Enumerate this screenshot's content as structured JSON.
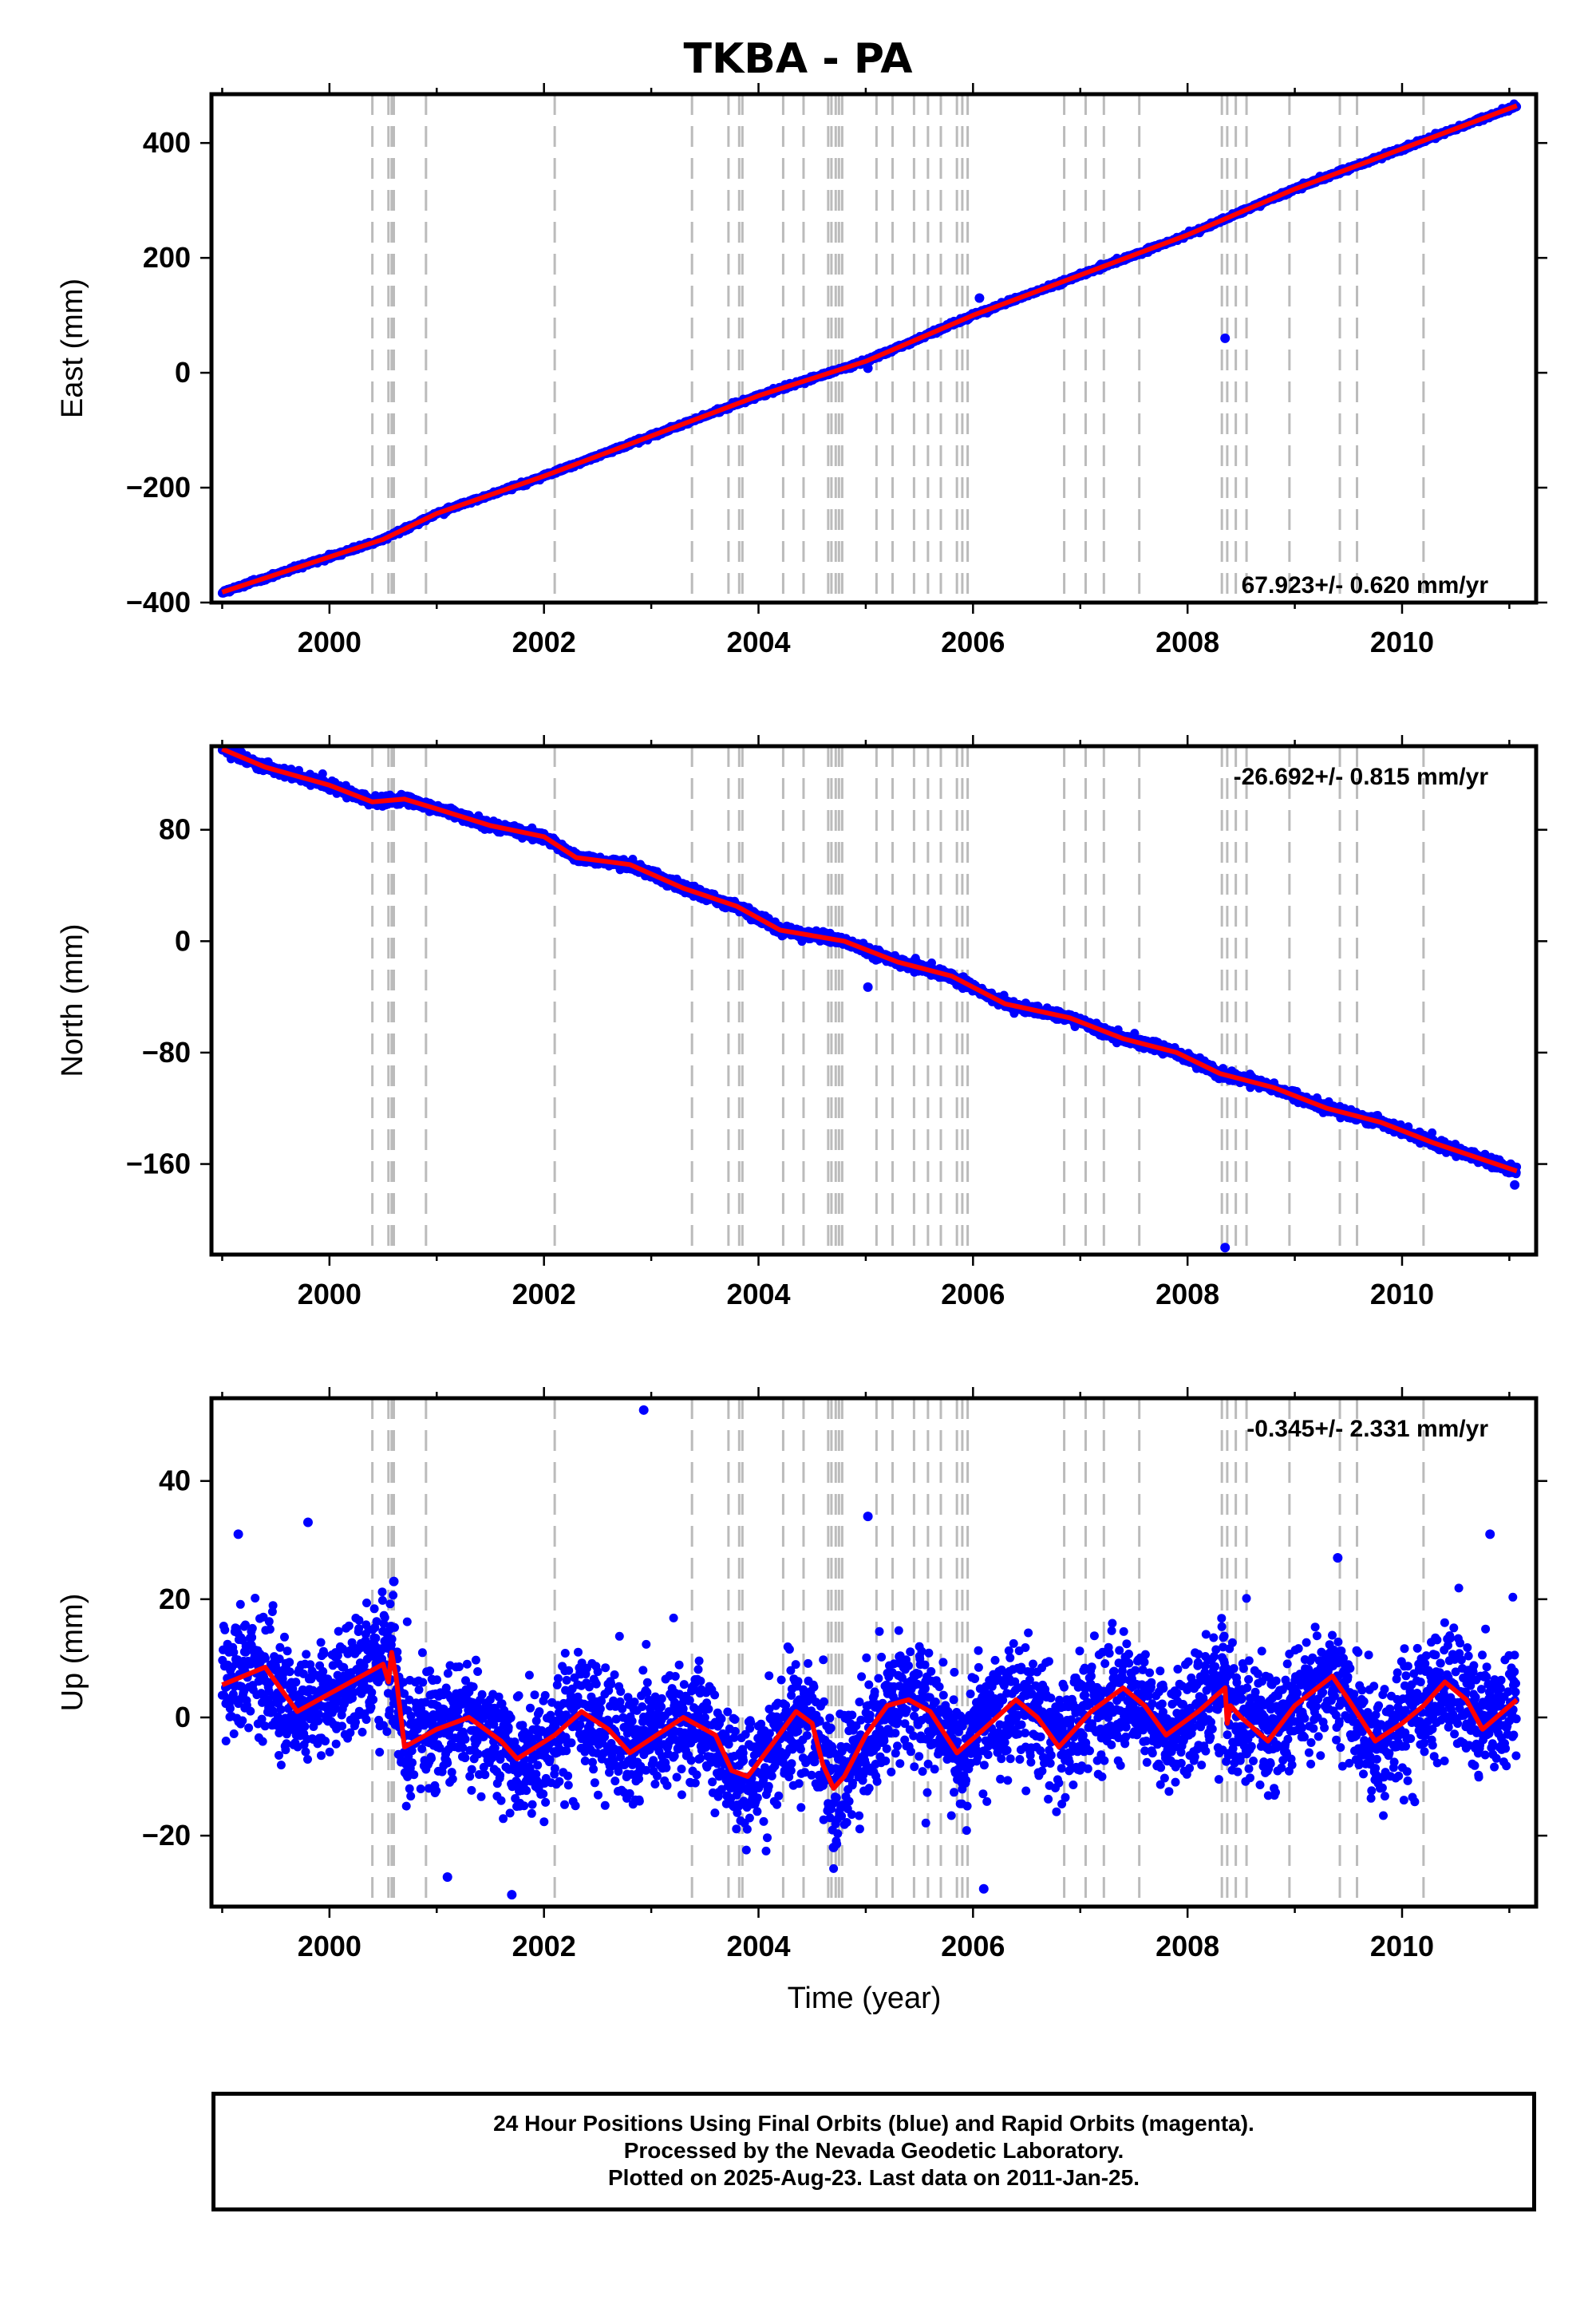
{
  "title": "TKBA - PA",
  "footer": {
    "line1": "24 Hour Positions Using Final Orbits (blue) and Rapid Orbits (magenta).",
    "line2": "Processed by the Nevada Geodetic Laboratory.",
    "line3": "Plotted on 2025-Aug-23. Last data on 2011-Jan-25."
  },
  "colors": {
    "data": "#0000ff",
    "model": "#ff0000",
    "events": "#bbbbbb"
  },
  "chart_data": [
    {
      "type": "scatter",
      "component": "east",
      "ylabel": "East (mm)",
      "xlabel": "",
      "xlim": [
        1998.9,
        2011.25
      ],
      "ylim": [
        -400,
        485
      ],
      "xticks": [
        2000,
        2002,
        2004,
        2006,
        2008,
        2010
      ],
      "yticks": [
        -400,
        -200,
        0,
        200,
        400
      ],
      "rate_label": "67.923+/- 0.620 mm/yr",
      "rate_position": "bottom-right",
      "series": [
        {
          "trend": {
            "start": [
              1999.0,
              -382
            ],
            "end": [
              2011.07,
              465
            ]
          },
          "outliers": [
            [
              2006.06,
              130
            ],
            [
              2005.02,
              8
            ],
            [
              2008.35,
              60
            ]
          ],
          "model_line": [
            [
              1999.0,
              -382
            ],
            [
              2000.5,
              -290
            ],
            [
              2001.0,
              -245
            ],
            [
              2002.0,
              -180
            ],
            [
              2003.0,
              -110
            ],
            [
              2004.0,
              -40
            ],
            [
              2005.0,
              20
            ],
            [
              2006.0,
              100
            ],
            [
              2007.0,
              170
            ],
            [
              2008.0,
              240
            ],
            [
              2009.0,
              320
            ],
            [
              2010.0,
              390
            ],
            [
              2011.07,
              465
            ]
          ]
        }
      ]
    },
    {
      "type": "scatter",
      "component": "north",
      "ylabel": "North (mm)",
      "xlabel": "",
      "xlim": [
        1998.9,
        2011.25
      ],
      "ylim": [
        -225,
        140
      ],
      "xticks": [
        2000,
        2002,
        2004,
        2006,
        2008,
        2010
      ],
      "yticks": [
        -160,
        -80,
        0,
        80
      ],
      "rate_label": "-26.692+/- 0.815 mm/yr",
      "rate_position": "top-right",
      "series": [
        {
          "trend": {
            "start": [
              1999.0,
              140
            ],
            "end": [
              2011.07,
              -165
            ]
          },
          "outliers": [
            [
              2005.02,
              -33
            ],
            [
              2008.35,
              -220
            ],
            [
              2011.05,
              -175
            ]
          ],
          "model_line": [
            [
              1999.0,
              138
            ],
            [
              1999.4,
              125
            ],
            [
              2000.0,
              112
            ],
            [
              2000.4,
              100
            ],
            [
              2000.7,
              102
            ],
            [
              2001.0,
              95
            ],
            [
              2001.5,
              83
            ],
            [
              2002.0,
              75
            ],
            [
              2002.3,
              60
            ],
            [
              2002.8,
              55
            ],
            [
              2003.3,
              38
            ],
            [
              2003.8,
              25
            ],
            [
              2004.2,
              8
            ],
            [
              2004.8,
              0
            ],
            [
              2005.3,
              -15
            ],
            [
              2005.8,
              -25
            ],
            [
              2006.3,
              -45
            ],
            [
              2006.9,
              -55
            ],
            [
              2007.4,
              -70
            ],
            [
              2007.9,
              -80
            ],
            [
              2008.3,
              -95
            ],
            [
              2008.8,
              -105
            ],
            [
              2009.3,
              -120
            ],
            [
              2009.8,
              -130
            ],
            [
              2010.3,
              -145
            ],
            [
              2011.07,
              -165
            ]
          ]
        }
      ]
    },
    {
      "type": "scatter",
      "component": "up",
      "ylabel": "Up (mm)",
      "xlabel": "Time (year)",
      "xlim": [
        1998.9,
        2011.25
      ],
      "ylim": [
        -32,
        54
      ],
      "xticks": [
        2000,
        2002,
        2004,
        2006,
        2008,
        2010
      ],
      "yticks": [
        -20,
        0,
        20,
        40
      ],
      "rate_label": "-0.345+/- 2.331 mm/yr",
      "rate_position": "top-right",
      "series": [
        {
          "scatter_sd": 5,
          "outliers": [
            [
              2002.93,
              52
            ],
            [
              2005.02,
              34
            ],
            [
              2010.82,
              31
            ],
            [
              1999.15,
              31
            ],
            [
              1999.8,
              33
            ],
            [
              2001.7,
              -30
            ],
            [
              2001.1,
              -27
            ],
            [
              2006.1,
              -29
            ],
            [
              2009.4,
              27
            ],
            [
              2004.7,
              -22
            ],
            [
              2000.6,
              23
            ]
          ],
          "model_line": [
            [
              1999.0,
              5.5
            ],
            [
              1999.4,
              8.5
            ],
            [
              1999.7,
              1
            ],
            [
              2000.0,
              4
            ],
            [
              2000.3,
              7
            ],
            [
              2000.5,
              9
            ],
            [
              2000.55,
              6
            ],
            [
              2000.58,
              11
            ],
            [
              2000.62,
              7
            ],
            [
              2000.7,
              -5
            ],
            [
              2001.0,
              -2
            ],
            [
              2001.3,
              0
            ],
            [
              2001.6,
              -4
            ],
            [
              2001.75,
              -7
            ],
            [
              2002.1,
              -3
            ],
            [
              2002.35,
              1
            ],
            [
              2002.6,
              -2
            ],
            [
              2002.8,
              -6
            ],
            [
              2003.3,
              0
            ],
            [
              2003.6,
              -3
            ],
            [
              2003.75,
              -9
            ],
            [
              2003.9,
              -10
            ],
            [
              2004.15,
              -4
            ],
            [
              2004.35,
              1
            ],
            [
              2004.5,
              -1
            ],
            [
              2004.6,
              -8
            ],
            [
              2004.7,
              -12
            ],
            [
              2004.8,
              -10
            ],
            [
              2005.0,
              -3
            ],
            [
              2005.2,
              2
            ],
            [
              2005.4,
              3
            ],
            [
              2005.6,
              1
            ],
            [
              2005.85,
              -6
            ],
            [
              2006.1,
              -2
            ],
            [
              2006.4,
              3
            ],
            [
              2006.6,
              0
            ],
            [
              2006.8,
              -5
            ],
            [
              2007.1,
              1
            ],
            [
              2007.4,
              5
            ],
            [
              2007.6,
              2
            ],
            [
              2007.8,
              -3
            ],
            [
              2008.1,
              1
            ],
            [
              2008.35,
              5
            ],
            [
              2008.37,
              -1
            ],
            [
              2008.4,
              2
            ],
            [
              2008.5,
              0
            ],
            [
              2008.75,
              -4
            ],
            [
              2009.0,
              2
            ],
            [
              2009.35,
              7
            ],
            [
              2009.5,
              3
            ],
            [
              2009.75,
              -4
            ],
            [
              2010.0,
              -1
            ],
            [
              2010.2,
              2
            ],
            [
              2010.4,
              6
            ],
            [
              2010.6,
              3
            ],
            [
              2010.75,
              -2
            ],
            [
              2011.07,
              3
            ]
          ]
        }
      ]
    }
  ],
  "event_lines": [
    2000.4,
    2000.55,
    2000.58,
    2000.6,
    2000.9,
    2002.1,
    2003.38,
    2003.72,
    2003.82,
    2003.85,
    2004.23,
    2004.42,
    2004.65,
    2004.68,
    2004.72,
    2004.75,
    2004.78,
    2005.1,
    2005.25,
    2005.45,
    2005.58,
    2005.7,
    2005.85,
    2005.9,
    2005.95,
    2006.85,
    2007.05,
    2007.22,
    2007.55,
    2008.32,
    2008.37,
    2008.45,
    2008.55,
    2008.95,
    2009.42,
    2009.58,
    2010.2
  ]
}
